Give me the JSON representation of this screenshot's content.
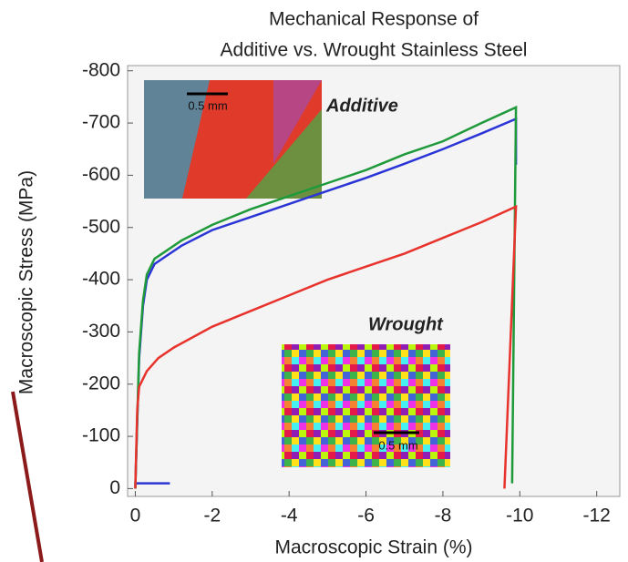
{
  "chart_data": {
    "type": "line",
    "title": [
      "Mechanical Response of",
      "Additive vs. Wrought Stainless Steel"
    ],
    "x_label": "Macroscopic Strain (%)",
    "y_label": "Macroscopic Stress (MPa)",
    "xlim": [
      0.2,
      -12.6
    ],
    "xticks": [
      0,
      -2,
      -4,
      -6,
      -8,
      -10,
      -12
    ],
    "ylim": [
      15,
      -810
    ],
    "yticks": [
      -800,
      -700,
      -600,
      -500,
      -400,
      -300,
      -200,
      -100,
      0
    ],
    "series": [
      {
        "name": "Additive",
        "color": "#2b35d6",
        "x": [
          0,
          -0.9,
          -0.9,
          0,
          -0.1,
          -0.2,
          -0.3,
          -0.5,
          -0.8,
          -1.2,
          -2,
          -3,
          -4,
          -5,
          -6,
          -7,
          -8,
          -9,
          -9.9,
          -9.9
        ],
        "values": [
          -10,
          -10,
          null,
          0,
          -250,
          -350,
          -400,
          -430,
          -445,
          -465,
          -495,
          -520,
          -545,
          -570,
          -595,
          -622,
          -650,
          -680,
          -708,
          -620
        ]
      },
      {
        "color": "#1f9a3a",
        "x": [
          0,
          -0.1,
          -0.2,
          -0.3,
          -0.5,
          -0.8,
          -1.2,
          -2,
          -3,
          -4,
          -5,
          -6,
          -7,
          -8,
          -9,
          -9.9,
          -9.8
        ],
        "values": [
          0,
          -260,
          -360,
          -410,
          -440,
          -455,
          -475,
          -505,
          -535,
          -560,
          -585,
          -610,
          -640,
          -665,
          -700,
          -730,
          -10
        ]
      },
      {
        "name": "Wrought",
        "color": "#e8322c",
        "x": [
          0,
          -0.05,
          -0.1,
          -0.3,
          -0.6,
          -1,
          -2,
          -3,
          -4,
          -5,
          -6,
          -7,
          -8,
          -9,
          -9.9,
          -9.6
        ],
        "values": [
          0,
          -150,
          -195,
          -225,
          -250,
          -270,
          -310,
          -340,
          -370,
          -400,
          -425,
          -450,
          -480,
          -510,
          -540,
          0
        ]
      }
    ],
    "annotations": [
      "0.5 mm",
      "0.5 mm"
    ]
  }
}
